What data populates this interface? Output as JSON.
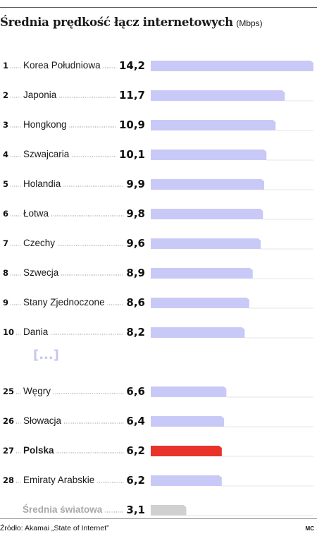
{
  "title": "Średnia prędkość łącz internetowych",
  "unit": "(Mbps)",
  "source": "Źródło: Akamai „State of Internet”",
  "credit": "MC",
  "colors": {
    "bar": "#c9c9f7",
    "highlight": "#e8322a",
    "world": "#d0d0d0",
    "ellipsis": "#c6c6ee",
    "muted_text": "#a9a9a9"
  },
  "chart_data": {
    "type": "bar",
    "orientation": "horizontal",
    "unit": "Mbps",
    "xlim": [
      0,
      14.2
    ],
    "grid": false,
    "legend": "none",
    "gap_marker": "[...]",
    "rows": [
      {
        "rank": "1",
        "label": "Korea Południowa",
        "value": 14.2,
        "value_label": "14,2",
        "style": "normal"
      },
      {
        "rank": "2",
        "label": "Japonia",
        "value": 11.7,
        "value_label": "11,7",
        "style": "normal"
      },
      {
        "rank": "3",
        "label": "Hongkong",
        "value": 10.9,
        "value_label": "10,9",
        "style": "normal"
      },
      {
        "rank": "4",
        "label": "Szwajcaria",
        "value": 10.1,
        "value_label": "10,1",
        "style": "normal"
      },
      {
        "rank": "5",
        "label": "Holandia",
        "value": 9.9,
        "value_label": "9,9",
        "style": "normal"
      },
      {
        "rank": "6",
        "label": "Łotwa",
        "value": 9.8,
        "value_label": "9,8",
        "style": "normal"
      },
      {
        "rank": "7",
        "label": "Czechy",
        "value": 9.6,
        "value_label": "9,6",
        "style": "normal"
      },
      {
        "rank": "8",
        "label": "Szwecja",
        "value": 8.9,
        "value_label": "8,9",
        "style": "normal"
      },
      {
        "rank": "9",
        "label": "Stany Zjednoczone",
        "value": 8.6,
        "value_label": "8,6",
        "style": "normal"
      },
      {
        "rank": "10",
        "label": "Dania",
        "value": 8.2,
        "value_label": "8,2",
        "style": "normal"
      },
      {
        "rank": "25",
        "label": "Węgry",
        "value": 6.6,
        "value_label": "6,6",
        "style": "normal"
      },
      {
        "rank": "26",
        "label": "Słowacja",
        "value": 6.4,
        "value_label": "6,4",
        "style": "normal"
      },
      {
        "rank": "27",
        "label": "Polska",
        "value": 6.2,
        "value_label": "6,2",
        "style": "highlight"
      },
      {
        "rank": "28",
        "label": "Emiraty Arabskie",
        "value": 6.2,
        "value_label": "6,2",
        "style": "normal"
      },
      {
        "rank": "",
        "label": "Średnia światowa",
        "value": 3.1,
        "value_label": "3,1",
        "style": "world"
      }
    ]
  }
}
